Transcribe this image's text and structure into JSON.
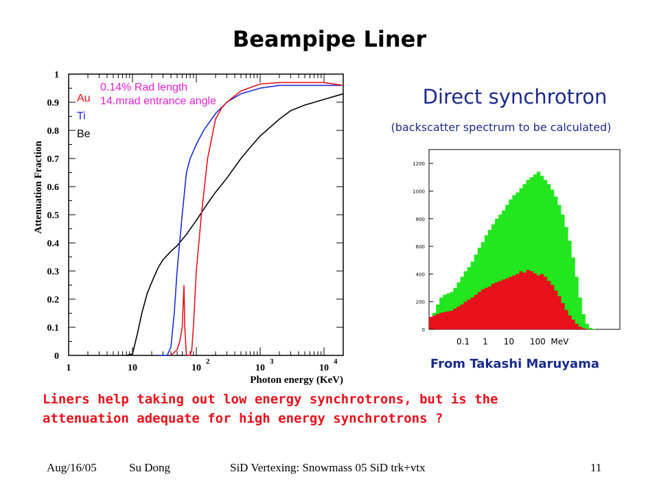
{
  "slide": {
    "title": "Beampipe Liner",
    "right_heading": "Direct synchrotron",
    "right_subheading": "(backscatter spectrum to be calculated)",
    "credit": "From Takashi Maruyama",
    "bottom_text_line1": "Liners help taking out low energy synchrotrons, but is the",
    "bottom_text_line2": "attenuation adequate for high energy synchrotrons ?",
    "footer_date": "Aug/16/05",
    "footer_author": "Su Dong",
    "footer_center": "SiD Vertexing: Snowmass 05 SiD trk+vtx",
    "footer_page": "11"
  },
  "chart_data": [
    {
      "type": "line",
      "xlabel": "Photon energy (KeV)",
      "ylabel": "Attenuation Fraction",
      "xscale": "log",
      "xlim": [
        1,
        20000
      ],
      "ylim": [
        0,
        1
      ],
      "x_tick_labels": [
        "1",
        "10",
        "10",
        "2",
        "10",
        "3",
        "10",
        "4"
      ],
      "y_tick_labels": [
        "0",
        "0.1",
        "0.2",
        "0.3",
        "0.4",
        "0.5",
        "0.6",
        "0.7",
        "0.8",
        "0.9",
        "1"
      ],
      "annotation_line1": "0.14% Rad length",
      "annotation_line2": "14.mrad entrance angle",
      "annotation_color": "#e020d0",
      "legend": [
        {
          "name": "Au",
          "color": "#e8101a"
        },
        {
          "name": "Ti",
          "color": "#1a2ad8"
        },
        {
          "name": "Be",
          "color": "#000000"
        }
      ],
      "series": [
        {
          "name": "Be",
          "color": "#000000",
          "x": [
            8,
            10,
            12,
            14,
            17,
            20,
            25,
            30,
            40,
            50,
            70,
            100,
            150,
            200,
            300,
            500,
            700,
            1000,
            2000,
            3000,
            5000,
            10000,
            20000
          ],
          "y": [
            0,
            0.005,
            0.08,
            0.15,
            0.22,
            0.26,
            0.31,
            0.34,
            0.37,
            0.39,
            0.43,
            0.48,
            0.54,
            0.58,
            0.63,
            0.7,
            0.74,
            0.78,
            0.84,
            0.87,
            0.89,
            0.91,
            0.93
          ]
        },
        {
          "name": "Ti",
          "color": "#1a2ad8",
          "x": [
            25,
            35,
            40,
            45,
            50,
            60,
            70,
            80,
            100,
            130,
            150,
            200,
            300,
            500,
            1000,
            2000,
            3000,
            5000,
            10000,
            20000
          ],
          "y": [
            0,
            0.0,
            0.03,
            0.15,
            0.3,
            0.5,
            0.65,
            0.7,
            0.75,
            0.8,
            0.82,
            0.86,
            0.9,
            0.93,
            0.95,
            0.96,
            0.96,
            0.96,
            0.96,
            0.96
          ]
        },
        {
          "name": "Au",
          "color": "#e8101a",
          "x": [
            40,
            50,
            55,
            60,
            64,
            66,
            70,
            80,
            85,
            90,
            100,
            120,
            150,
            200,
            250,
            300,
            500,
            1000,
            2000,
            5000,
            10000,
            20000
          ],
          "y": [
            0,
            0.02,
            0.05,
            0.1,
            0.25,
            0.1,
            0.0,
            0.0,
            0.02,
            0.1,
            0.3,
            0.5,
            0.7,
            0.84,
            0.88,
            0.9,
            0.94,
            0.965,
            0.97,
            0.97,
            0.97,
            0.96
          ]
        }
      ]
    },
    {
      "type": "bar",
      "title": "",
      "xlabel": "0.1     1      10      100  MeV",
      "y_tick_labels": [
        "0",
        "200",
        "400",
        "600",
        "800",
        "1000",
        "1200"
      ],
      "ylim": [
        0,
        1300
      ],
      "bins": 55,
      "series": [
        {
          "name": "",
          "color": "#22e61e",
          "values": [
            60,
            120,
            180,
            230,
            250,
            260,
            270,
            300,
            340,
            380,
            420,
            450,
            490,
            540,
            590,
            630,
            680,
            720,
            760,
            800,
            830,
            860,
            900,
            940,
            970,
            990,
            1020,
            1050,
            1080,
            1100,
            1120,
            1140,
            1110,
            1080,
            1050,
            1010,
            960,
            900,
            830,
            740,
            640,
            520,
            380,
            230,
            110,
            40,
            10,
            2,
            0,
            0,
            0,
            0,
            0,
            0,
            0
          ]
        },
        {
          "name": "",
          "color": "#e8101a",
          "values": [
            90,
            100,
            110,
            120,
            125,
            130,
            135,
            150,
            165,
            180,
            200,
            215,
            230,
            250,
            270,
            290,
            300,
            310,
            330,
            340,
            350,
            360,
            370,
            380,
            390,
            400,
            420,
            410,
            430,
            420,
            405,
            390,
            400,
            380,
            350,
            320,
            280,
            240,
            190,
            140,
            100,
            70,
            40,
            20,
            8,
            2,
            0,
            0,
            0,
            0,
            0,
            0,
            0,
            0,
            0
          ]
        }
      ]
    }
  ]
}
